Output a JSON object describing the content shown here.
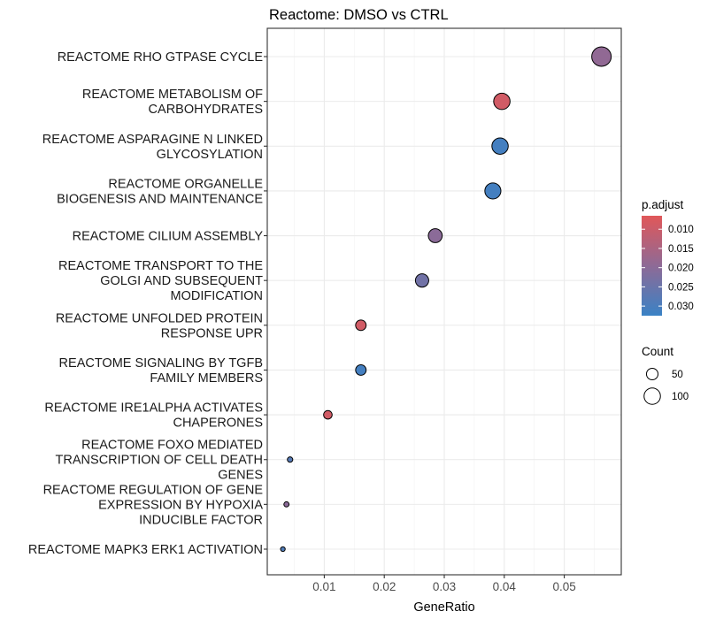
{
  "chart_data": {
    "type": "scatter",
    "title": "Reactome: DMSO vs CTRL",
    "xlabel": "GeneRatio",
    "ylabel": "",
    "xlim": [
      0.0005,
      0.0595
    ],
    "xticks": [
      0.01,
      0.02,
      0.03,
      0.04,
      0.05
    ],
    "xtick_labels": [
      "0.01",
      "0.02",
      "0.03",
      "0.04",
      "0.05"
    ],
    "grid": true,
    "legend_position": "right",
    "color_legend": {
      "title": "p.adjust",
      "low_color": "#e15759",
      "mid_color": "#8e6a96",
      "high_color": "#3a82c5",
      "range": [
        0.0065,
        0.0325
      ],
      "ticks": [
        0.01,
        0.015,
        0.02,
        0.025,
        0.03
      ],
      "tick_labels": [
        "0.010",
        "0.015",
        "0.020",
        "0.025",
        "0.030"
      ]
    },
    "size_legend": {
      "title": "Count",
      "values": [
        50,
        100
      ],
      "labels": [
        "50",
        "100"
      ]
    },
    "points": [
      {
        "label": [
          "REACTOME RHO GTPASE CYCLE"
        ],
        "x": 0.0562,
        "count": 141,
        "p_adjust": 0.019
      },
      {
        "label": [
          "REACTOME METABOLISM OF",
          "CARBOHYDRATES"
        ],
        "x": 0.0396,
        "count": 100,
        "p_adjust": 0.009
      },
      {
        "label": [
          "REACTOME ASPARAGINE N LINKED",
          "GLYCOSYLATION"
        ],
        "x": 0.0393,
        "count": 99,
        "p_adjust": 0.031
      },
      {
        "label": [
          "REACTOME ORGANELLE",
          "BIOGENESIS AND MAINTENANCE"
        ],
        "x": 0.0381,
        "count": 96,
        "p_adjust": 0.031
      },
      {
        "label": [
          "REACTOME CILIUM ASSEMBLY"
        ],
        "x": 0.0285,
        "count": 72,
        "p_adjust": 0.02
      },
      {
        "label": [
          "REACTOME TRANSPORT TO THE",
          "GOLGI AND SUBSEQUENT",
          "MODIFICATION"
        ],
        "x": 0.0263,
        "count": 66,
        "p_adjust": 0.024
      },
      {
        "label": [
          "REACTOME UNFOLDED PROTEIN",
          "RESPONSE UPR"
        ],
        "x": 0.0161,
        "count": 41,
        "p_adjust": 0.009
      },
      {
        "label": [
          "REACTOME SIGNALING BY TGFB",
          "FAMILY MEMBERS"
        ],
        "x": 0.0161,
        "count": 41,
        "p_adjust": 0.031
      },
      {
        "label": [
          "REACTOME IRE1ALPHA ACTIVATES",
          "CHAPERONES"
        ],
        "x": 0.0106,
        "count": 27,
        "p_adjust": 0.009
      },
      {
        "label": [
          "REACTOME FOXO MEDIATED",
          "TRANSCRIPTION OF CELL DEATH",
          "GENES"
        ],
        "x": 0.0043,
        "count": 11,
        "p_adjust": 0.028
      },
      {
        "label": [
          "REACTOME REGULATION OF GENE",
          "EXPRESSION BY HYPOXIA",
          "INDUCIBLE FACTOR"
        ],
        "x": 0.0037,
        "count": 10,
        "p_adjust": 0.02
      },
      {
        "label": [
          "REACTOME MAPK3 ERK1 ACTIVATION"
        ],
        "x": 0.0031,
        "count": 8,
        "p_adjust": 0.029
      }
    ]
  }
}
